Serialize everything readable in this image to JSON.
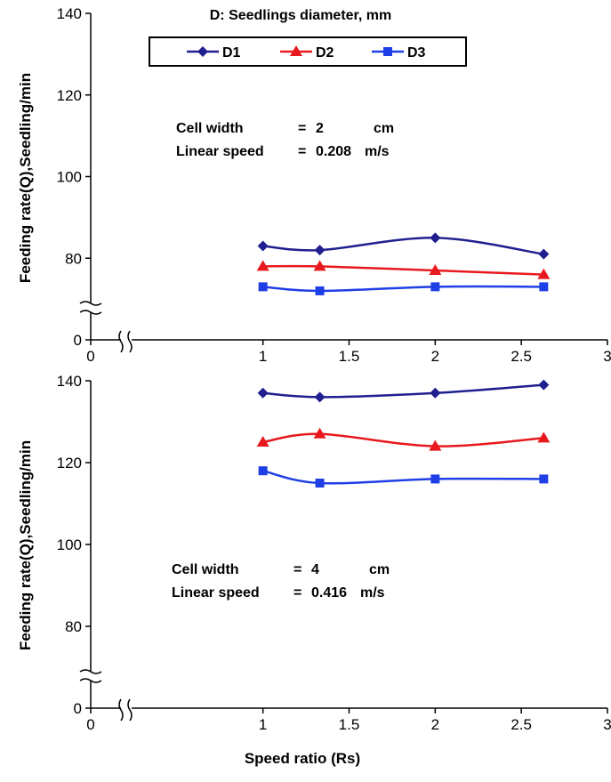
{
  "legend": {
    "title": "D: Seedlings diameter, mm",
    "items": [
      {
        "label": "D1",
        "color": "#1f1f8f",
        "marker": "diamond"
      },
      {
        "label": "D2",
        "color": "#e8191e",
        "marker": "triangle"
      },
      {
        "label": "D3",
        "color": "#1f3fe6",
        "marker": "square"
      }
    ]
  },
  "ylabel": "Feeding rate(Q),Seedling/min",
  "xlabel": "Speed ratio (Rs)",
  "chart_data": [
    {
      "type": "line",
      "xlim": [
        0,
        3
      ],
      "ylim": [
        0,
        140
      ],
      "xticks": [
        "0",
        "1",
        "1.5",
        "2",
        "2.5",
        "3"
      ],
      "yticks": [
        "0",
        "80",
        "100",
        "120",
        "140"
      ],
      "axis_break": true,
      "annotation": {
        "line1": {
          "label": "Cell width",
          "eq": "=",
          "value": "2",
          "unit": "cm"
        },
        "line2": {
          "label": "Linear speed",
          "eq": "=",
          "value": "0.208",
          "unit": "m/s"
        }
      },
      "series": [
        {
          "name": "D1",
          "x": [
            1,
            1.33,
            2,
            2.63
          ],
          "values": [
            83,
            82,
            85,
            81
          ]
        },
        {
          "name": "D2",
          "x": [
            1,
            1.33,
            2,
            2.63
          ],
          "values": [
            78,
            78,
            77,
            76
          ]
        },
        {
          "name": "D3",
          "x": [
            1,
            1.33,
            2,
            2.63
          ],
          "values": [
            73,
            72,
            73,
            73
          ]
        }
      ]
    },
    {
      "type": "line",
      "xlim": [
        0,
        3
      ],
      "ylim": [
        0,
        140
      ],
      "xticks": [
        "0",
        "1",
        "1.5",
        "2",
        "2.5",
        "3"
      ],
      "yticks": [
        "0",
        "80",
        "100",
        "120",
        "140"
      ],
      "axis_break": true,
      "annotation": {
        "line1": {
          "label": "Cell width",
          "eq": "=",
          "value": "4",
          "unit": "cm"
        },
        "line2": {
          "label": "Linear speed",
          "eq": "=",
          "value": "0.416",
          "unit": "m/s"
        }
      },
      "series": [
        {
          "name": "D1",
          "x": [
            1,
            1.33,
            2,
            2.63
          ],
          "values": [
            137,
            136,
            137,
            139
          ]
        },
        {
          "name": "D2",
          "x": [
            1,
            1.33,
            2,
            2.63
          ],
          "values": [
            125,
            127,
            124,
            126
          ]
        },
        {
          "name": "D3",
          "x": [
            1,
            1.33,
            2,
            2.63
          ],
          "values": [
            118,
            115,
            116,
            116
          ]
        }
      ]
    }
  ]
}
